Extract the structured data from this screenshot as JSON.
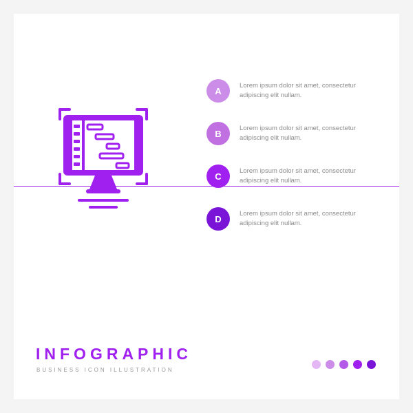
{
  "colors": {
    "primary": "#a020f0",
    "canvas": "#ffffff",
    "page_bg": "#f4f4f4",
    "text_muted": "#8a8a8a",
    "subtitle": "#9a9a9a"
  },
  "main_icon": {
    "type": "monitor-gantt",
    "color": "#a020f0"
  },
  "divider": {
    "color": "#a020f0",
    "thickness": 1
  },
  "items": [
    {
      "letter": "A",
      "badge_color": "#cb8de8",
      "text": "Lorem ipsum dolor sit amet, consectetur adipiscing elit nullam."
    },
    {
      "letter": "B",
      "badge_color": "#c070e0",
      "text": "Lorem ipsum dolor sit amet, consectetur adipiscing elit nullam."
    },
    {
      "letter": "C",
      "badge_color": "#a020f0",
      "text": "Lorem ipsum dolor sit amet, consectetur adipiscing elit nullam."
    },
    {
      "letter": "D",
      "badge_color": "#7a15d8",
      "text": "Lorem ipsum dolor sit amet, consectetur adipiscing elit nullam."
    }
  ],
  "footer": {
    "title": "INFOGRAPHIC",
    "title_color": "#a020f0",
    "subtitle": "BUSINESS ICON ILLUSTRATION",
    "subtitle_color": "#9a9a9a",
    "dots": [
      {
        "color": "#e3b8f5"
      },
      {
        "color": "#cb8de8"
      },
      {
        "color": "#b45ae8"
      },
      {
        "color": "#a020f0"
      },
      {
        "color": "#7a15d8"
      }
    ]
  }
}
